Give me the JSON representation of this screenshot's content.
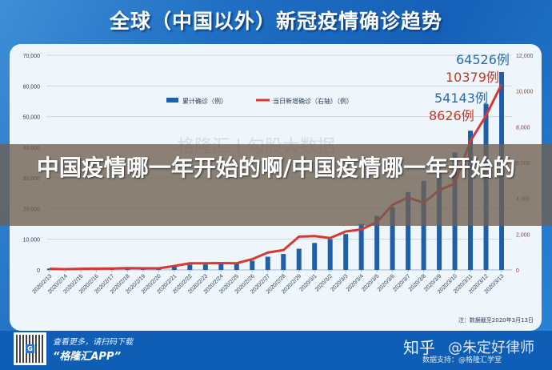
{
  "header": {
    "title": "全球（中国以外）新冠疫情确诊趋势"
  },
  "caption": {
    "text": "中国疫情哪一年开始的啊/中国疫情哪一年开始的"
  },
  "chart_note": "注：数据截至2020年3月13日",
  "background_watermark": "格隆汇 | 勾股大数据",
  "footer": {
    "promo_line1": "查看更多，请扫码下载",
    "promo_line2": "“格隆汇APP”",
    "qr_logo": "G",
    "watermark_zhihu": "知乎",
    "watermark_user": "@朱定好律师",
    "watermark_credit": "图片制作：格隆汇学院",
    "watermark_source": "数据支持：@格隆汇学堂"
  },
  "colors": {
    "bar": "#1f5fa8",
    "line": "#d43a32",
    "cum_label": "#2a6aaa",
    "daily_label": "#c0392b"
  },
  "chart_data": {
    "type": "bar",
    "title": "全球（中国以外）新冠疫情确诊趋势",
    "xlabel": "",
    "ylabel": "",
    "ylim": [
      0,
      70000
    ],
    "y2lim": [
      0,
      12000
    ],
    "left_ticks": [
      "0",
      "10,000",
      "20,000",
      "30,000",
      "40,000",
      "50,000",
      "60,000",
      "70,000"
    ],
    "right_ticks": [
      "0",
      "2,000",
      "4,000",
      "6,000",
      "8,000",
      "10,000",
      "12,000"
    ],
    "legend": [
      "累计确诊（例）",
      "当日新增确诊（右轴）（例）"
    ],
    "legend_position": "top-center",
    "grid": true,
    "categories": [
      "2020/2/13",
      "2020/2/14",
      "2020/2/15",
      "2020/2/16",
      "2020/2/17",
      "2020/2/18",
      "2020/2/19",
      "2020/2/20",
      "2020/2/21",
      "2020/2/22",
      "2020/2/23",
      "2020/2/24",
      "2020/2/25",
      "2020/2/26",
      "2020/2/27",
      "2020/2/28",
      "2020/2/29",
      "2020/3/1",
      "2020/3/2",
      "2020/3/3",
      "2020/3/4",
      "2020/3/5",
      "2020/3/6",
      "2020/3/7",
      "2020/3/8",
      "2020/3/9",
      "2020/3/10",
      "2020/3/11",
      "2020/3/12",
      "2020/3/13"
    ],
    "series": [
      {
        "name": "累计确诊（例）",
        "type": "bar",
        "axis": "left",
        "values": [
          450,
          470,
          500,
          520,
          600,
          650,
          700,
          800,
          1000,
          1700,
          1800,
          2000,
          2200,
          3000,
          4300,
          5200,
          6900,
          8800,
          10000,
          11700,
          15000,
          17600,
          20500,
          25400,
          29000,
          31600,
          38300,
          45400,
          54143,
          64526
        ]
      },
      {
        "name": "当日新增确诊（右轴）（例）",
        "type": "line",
        "axis": "right",
        "values": [
          60,
          40,
          60,
          70,
          80,
          100,
          90,
          90,
          220,
          370,
          370,
          380,
          370,
          600,
          970,
          1110,
          1860,
          1890,
          1780,
          2150,
          2260,
          2670,
          3640,
          4040,
          3760,
          4460,
          4830,
          7200,
          8626,
          10379
        ]
      }
    ],
    "annotations": [
      {
        "text": "64526例",
        "series": "累计确诊（例）",
        "x": "2020/3/13"
      },
      {
        "text": "10379例",
        "series": "当日新增确诊（右轴）（例）",
        "x": "2020/3/13"
      },
      {
        "text": "54143例",
        "series": "累计确诊（例）",
        "x": "2020/3/12"
      },
      {
        "text": "8626例",
        "series": "当日新增确诊（右轴）（例）",
        "x": "2020/3/12"
      }
    ]
  }
}
